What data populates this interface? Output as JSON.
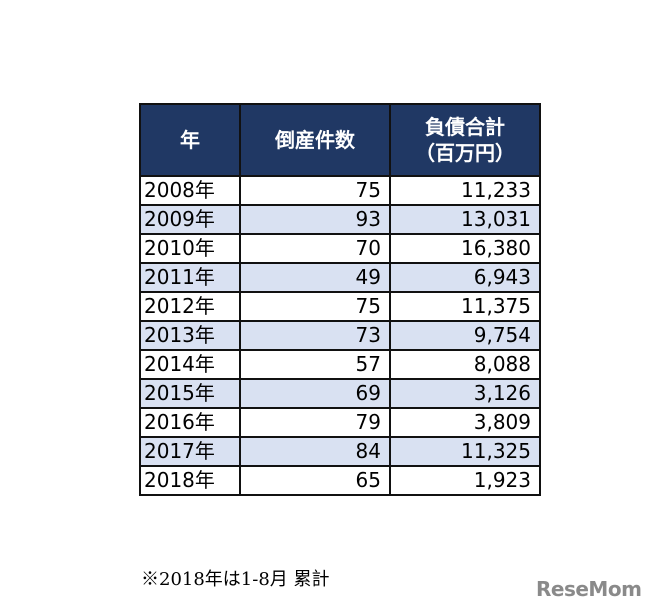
{
  "table": {
    "headers": [
      "年",
      "倒産件数",
      "負債合計",
      "（百万円）"
    ],
    "rows": [
      {
        "year": "2008年",
        "count": "75",
        "debt": "11,233"
      },
      {
        "year": "2009年",
        "count": "93",
        "debt": "13,031"
      },
      {
        "year": "2010年",
        "count": "70",
        "debt": "16,380"
      },
      {
        "year": "2011年",
        "count": "49",
        "debt": "6,943"
      },
      {
        "year": "2012年",
        "count": "75",
        "debt": "11,375"
      },
      {
        "year": "2013年",
        "count": "73",
        "debt": "9,754"
      },
      {
        "year": "2014年",
        "count": "57",
        "debt": "8,088"
      },
      {
        "year": "2015年",
        "count": "69",
        "debt": "3,126"
      },
      {
        "year": "2016年",
        "count": "79",
        "debt": "3,809"
      },
      {
        "year": "2017年",
        "count": "84",
        "debt": "11,325"
      },
      {
        "year": "2018年",
        "count": "65",
        "debt": "1,923"
      }
    ]
  },
  "note": "※2018年は1-8月 累計",
  "logo": "ReseMom",
  "colors": {
    "header_bg": "#203864",
    "alt_row_bg": "#d9e1f2"
  }
}
